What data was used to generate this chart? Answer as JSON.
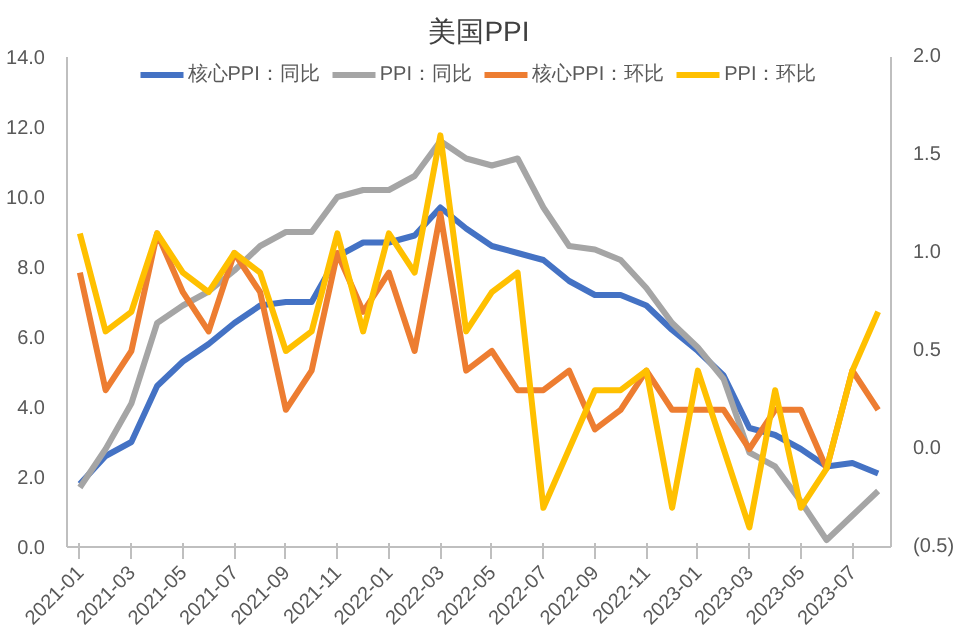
{
  "chart_data": {
    "type": "line",
    "title": "美国PPI",
    "categories": [
      "2021-01",
      null,
      "2021-03",
      null,
      "2021-05",
      null,
      "2021-07",
      null,
      "2021-09",
      null,
      "2021-11",
      null,
      "2022-01",
      null,
      "2022-03",
      null,
      "2022-05",
      null,
      "2022-07",
      null,
      "2022-09",
      null,
      "2022-11",
      null,
      "2023-01",
      null,
      "2023-03",
      null,
      "2023-05",
      null,
      "2023-07",
      null
    ],
    "series": [
      {
        "name": "核心PPI：同比",
        "color": "#4472c4",
        "values": [
          1.8,
          2.6,
          3.0,
          4.6,
          5.3,
          5.8,
          6.4,
          6.9,
          7.0,
          7.0,
          8.3,
          8.7,
          8.7,
          8.9,
          9.7,
          9.1,
          8.6,
          8.4,
          8.2,
          7.6,
          7.2,
          7.2,
          6.9,
          6.2,
          5.6,
          4.9,
          3.4,
          3.2,
          2.8,
          2.3,
          2.4,
          2.1
        ]
      },
      {
        "name": "PPI：同比",
        "color": "#a5a5a5",
        "values": [
          1.7,
          2.8,
          4.1,
          6.4,
          6.9,
          7.3,
          7.9,
          8.6,
          9.0,
          9.0,
          10.0,
          10.2,
          10.2,
          10.6,
          11.6,
          11.1,
          10.9,
          11.1,
          9.7,
          8.6,
          8.5,
          8.2,
          7.4,
          6.4,
          5.7,
          4.8,
          2.7,
          2.3,
          1.3,
          0.2,
          0.9,
          1.6
        ]
      },
      {
        "name": "核心PPI：环比",
        "color": "#ed7d31",
        "axis": "y2",
        "values": [
          0.9,
          0.3,
          0.5,
          1.1,
          0.8,
          0.6,
          1.0,
          0.8,
          0.2,
          0.4,
          1.0,
          0.7,
          0.9,
          0.5,
          1.2,
          0.4,
          0.5,
          0.3,
          0.3,
          0.4,
          0.1,
          0.2,
          0.4,
          0.2,
          0.2,
          0.2,
          0.0,
          0.2,
          0.2,
          -0.1,
          0.4,
          0.2
        ]
      },
      {
        "name": "PPI：环比",
        "color": "#ffc000",
        "axis": "y2",
        "values": [
          1.1,
          0.6,
          0.7,
          1.1,
          0.9,
          0.8,
          1.0,
          0.9,
          0.5,
          0.6,
          1.1,
          0.6,
          1.1,
          0.9,
          1.6,
          0.6,
          0.8,
          0.9,
          -0.3,
          0.0,
          0.3,
          0.3,
          0.4,
          -0.3,
          0.4,
          0.0,
          -0.4,
          0.3,
          -0.3,
          -0.1,
          0.4,
          0.7
        ]
      }
    ],
    "ylim": [
      0,
      14
    ],
    "yticks": [
      {
        "value": 0,
        "label": "0.0"
      },
      {
        "value": 2,
        "label": "2.0"
      },
      {
        "value": 4,
        "label": "4.0"
      },
      {
        "value": 6,
        "label": "6.0"
      },
      {
        "value": 8,
        "label": "8.0"
      },
      {
        "value": 10,
        "label": "10.0"
      },
      {
        "value": 12,
        "label": "12.0"
      },
      {
        "value": 14,
        "label": "14.0"
      }
    ],
    "y2lim": [
      -0.5,
      2.0
    ],
    "y2ticks": [
      {
        "value": -0.5,
        "label": "(0.5)"
      },
      {
        "value": 0,
        "label": "0.0"
      },
      {
        "value": 0.5,
        "label": "0.5"
      },
      {
        "value": 1.0,
        "label": "1.0"
      },
      {
        "value": 1.5,
        "label": "1.5"
      },
      {
        "value": 2.0,
        "label": "2.0"
      }
    ],
    "grid": false,
    "legend": "top",
    "marker": "none",
    "line_style": "solid"
  }
}
